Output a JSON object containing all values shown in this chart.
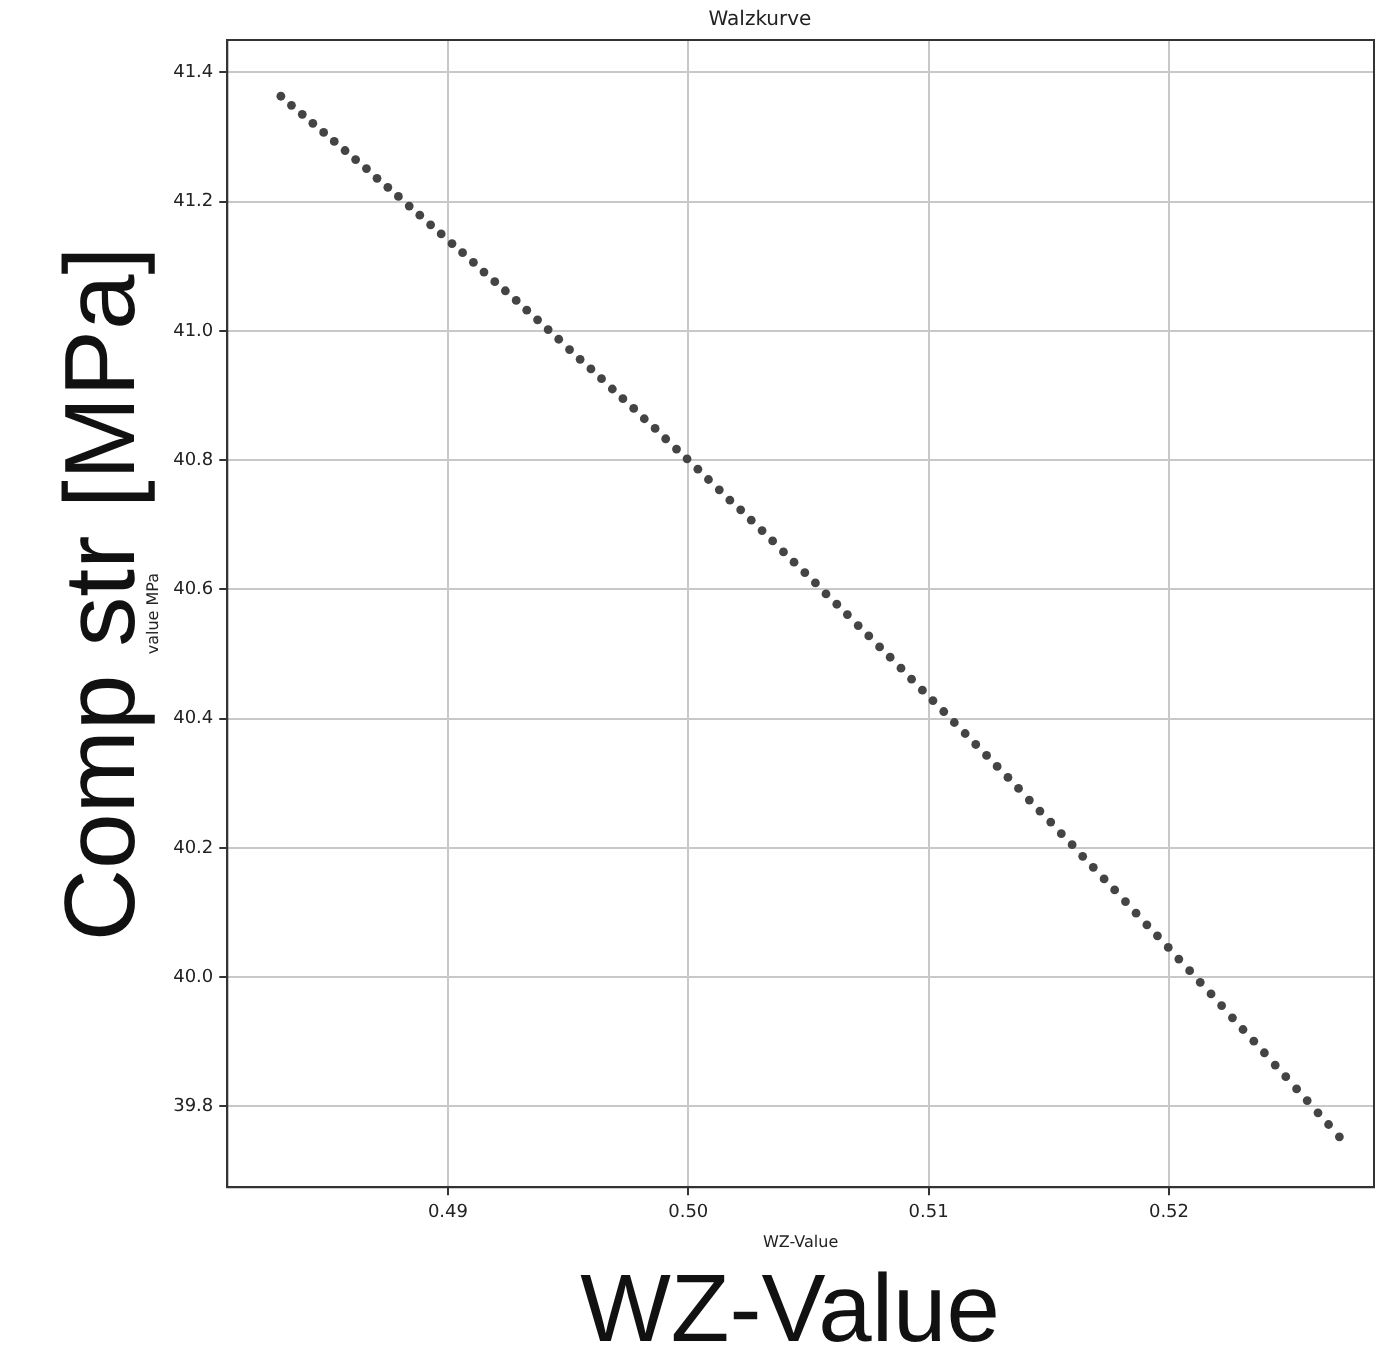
{
  "chart_data": {
    "type": "scatter",
    "title": "Walzkurve",
    "xlabel": "WZ-Value",
    "ylabel": "value MPa",
    "annotations": [
      "Comp str [MPa]",
      "WZ-Value"
    ],
    "x": [
      0.48305,
      0.48349,
      0.48394,
      0.48438,
      0.48483,
      0.48527,
      0.48572,
      0.48616,
      0.48661,
      0.48705,
      0.4875,
      0.48794,
      0.48839,
      0.48883,
      0.48928,
      0.48972,
      0.49017,
      0.49061,
      0.49106,
      0.4915,
      0.49195,
      0.49239,
      0.49284,
      0.49328,
      0.49373,
      0.49417,
      0.49461,
      0.49506,
      0.4955,
      0.49595,
      0.49639,
      0.49684,
      0.49728,
      0.49773,
      0.49817,
      0.49862,
      0.49906,
      0.49951,
      0.49995,
      0.5004,
      0.50084,
      0.50129,
      0.50173,
      0.50218,
      0.50262,
      0.50307,
      0.50351,
      0.50396,
      0.5044,
      0.50485,
      0.50529,
      0.50573,
      0.50618,
      0.50662,
      0.50707,
      0.50751,
      0.50796,
      0.5084,
      0.50885,
      0.50929,
      0.50974,
      0.51018,
      0.51063,
      0.51107,
      0.51152,
      0.51196,
      0.51241,
      0.51285,
      0.5133,
      0.51374,
      0.51419,
      0.51463,
      0.51508,
      0.51552,
      0.51597,
      0.51641,
      0.51685,
      0.5173,
      0.51774,
      0.51819,
      0.51863,
      0.51908,
      0.51952,
      0.51997,
      0.52041,
      0.52086,
      0.5213,
      0.52175,
      0.52219,
      0.52264,
      0.52308,
      0.52353,
      0.52397,
      0.52442,
      0.52486,
      0.52531,
      0.52575,
      0.5262,
      0.52664,
      0.52709
    ],
    "series": [
      {
        "color": "#444444",
        "values": [
          41.363,
          41.349,
          41.335,
          41.321,
          41.307,
          41.293,
          41.279,
          41.265,
          41.251,
          41.236,
          41.222,
          41.208,
          41.193,
          41.179,
          41.164,
          41.15,
          41.135,
          41.121,
          41.106,
          41.091,
          41.076,
          41.062,
          41.047,
          41.032,
          41.017,
          41.002,
          40.987,
          40.971,
          40.956,
          40.941,
          40.926,
          40.91,
          40.895,
          40.88,
          40.864,
          40.849,
          40.833,
          40.817,
          40.802,
          40.786,
          40.77,
          40.754,
          40.738,
          40.723,
          40.707,
          40.691,
          40.675,
          40.658,
          40.642,
          40.626,
          40.61,
          40.593,
          40.577,
          40.561,
          40.544,
          40.528,
          40.511,
          40.495,
          40.478,
          40.461,
          40.444,
          40.428,
          40.411,
          40.394,
          40.377,
          40.36,
          40.343,
          40.326,
          40.309,
          40.292,
          40.274,
          40.257,
          40.24,
          40.222,
          40.205,
          40.187,
          40.17,
          40.152,
          40.135,
          40.117,
          40.099,
          40.081,
          40.064,
          40.046,
          40.028,
          40.01,
          39.992,
          39.974,
          39.956,
          39.937,
          39.919,
          39.901,
          39.883,
          39.864,
          39.846,
          39.827,
          39.809,
          39.79,
          39.772,
          39.753
        ]
      }
    ],
    "xlim": [
      0.48082,
      0.52853
    ],
    "ylim": [
      39.675,
      41.45
    ],
    "xticks": [
      0.49,
      {
        "value": 0.5,
        "label": "0.50"
      },
      0.51,
      0.52
    ],
    "yticks": [
      39.8,
      {
        "value": 40.0,
        "label": "40.0"
      },
      40.2,
      40.4,
      40.6,
      40.8,
      {
        "value": 41.0,
        "label": "41.0"
      },
      41.2,
      41.4
    ],
    "grid": true,
    "marker": "circle",
    "legend": false
  }
}
